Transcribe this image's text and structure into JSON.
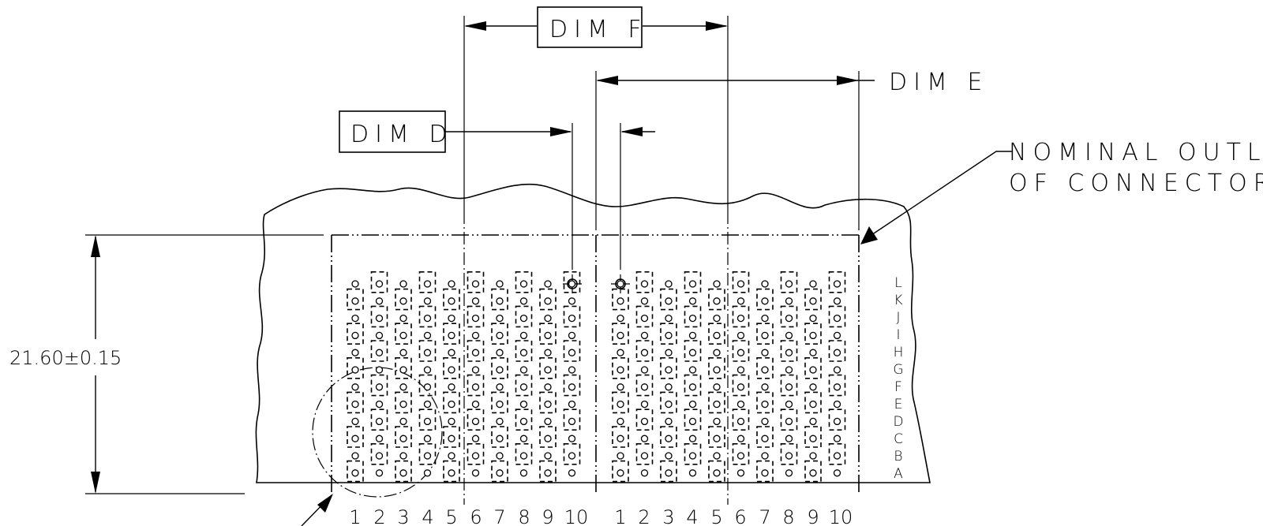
{
  "labels": {
    "dim_f": "DIM F",
    "dim_e": "DIM E",
    "dim_d": "DIM D",
    "outline_line1": "NOMINAL OUTLINE",
    "outline_line2": "OF CONNECTOR",
    "height_dimension": "21.60±0.15"
  },
  "column_numbers": [
    "1",
    "2",
    "3",
    "4",
    "5",
    "6",
    "7",
    "8",
    "9",
    "10"
  ],
  "row_letters": [
    "L",
    "K",
    "J",
    "I",
    "H",
    "G",
    "F",
    "E",
    "D",
    "C",
    "B",
    "A"
  ],
  "connector_count": 2
}
